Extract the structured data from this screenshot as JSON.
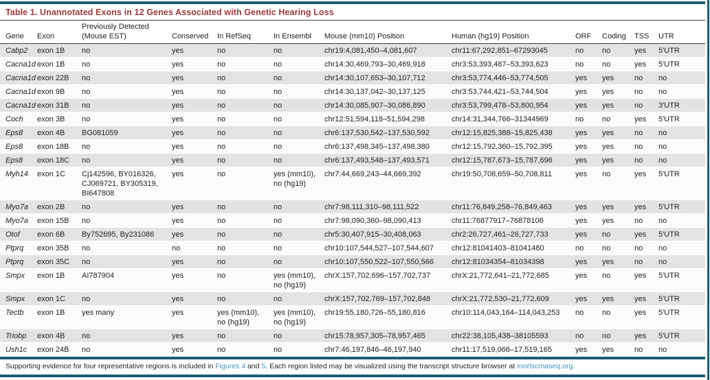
{
  "title": "Table 1.  Unannotated Exons in 12 Genes Associated with Genetic Hearing Loss",
  "colors": {
    "rule_blue": "#1f5c78",
    "title_red": "#9c3a3a",
    "link_blue": "#3f93c4",
    "stripe_gray": "#e3e3e3"
  },
  "table": {
    "columns": [
      {
        "key": "gene",
        "label": "Gene"
      },
      {
        "key": "exon",
        "label": "Exon"
      },
      {
        "key": "est",
        "label": "Previously Detected\n(Mouse EST)"
      },
      {
        "key": "conserved",
        "label": "Conserved"
      },
      {
        "key": "refseq",
        "label": "In RefSeq"
      },
      {
        "key": "ensembl",
        "label": "In Ensembl"
      },
      {
        "key": "mouse",
        "label": "Mouse (mm10) Position"
      },
      {
        "key": "human",
        "label": "Human (hg19) Position"
      },
      {
        "key": "orf",
        "label": "ORF"
      },
      {
        "key": "coding",
        "label": "Coding"
      },
      {
        "key": "tss",
        "label": "TSS"
      },
      {
        "key": "utr",
        "label": "UTR"
      }
    ],
    "rows": [
      {
        "gene": "Cabp2",
        "exon": "exon 1B",
        "est": "no",
        "conserved": "yes",
        "refseq": "no",
        "ensembl": "no",
        "mouse": "chr19:4,081,450–4,081,607",
        "human": "chr11:67,292,851–67293045",
        "orf": "no",
        "coding": "no",
        "tss": "yes",
        "utr": "5′UTR"
      },
      {
        "gene": "Cacna1d",
        "exon": "exon 1B",
        "est": "no",
        "conserved": "yes",
        "refseq": "no",
        "ensembl": "no",
        "mouse": "chr14:30,469,793–30,469,918",
        "human": "chr3:53,393,487–53,393,623",
        "orf": "no",
        "coding": "no",
        "tss": "yes",
        "utr": "5′UTR"
      },
      {
        "gene": "Cacna1d",
        "exon": "exon 22B",
        "est": "no",
        "conserved": "yes",
        "refseq": "no",
        "ensembl": "no",
        "mouse": "chr14:30,107,653–30,107,712",
        "human": "chr3:53,774,446–53,774,505",
        "orf": "yes",
        "coding": "yes",
        "tss": "no",
        "utr": "no"
      },
      {
        "gene": "Cacna1d",
        "exon": "exon 9B",
        "est": "no",
        "conserved": "yes",
        "refseq": "no",
        "ensembl": "no",
        "mouse": "chr14:30,137,042–30,137,125",
        "human": "chr3:53,744,421–53,744,504",
        "orf": "yes",
        "coding": "yes",
        "tss": "no",
        "utr": "no"
      },
      {
        "gene": "Cacna1d",
        "exon": "exon 31B",
        "est": "no",
        "conserved": "yes",
        "refseq": "no",
        "ensembl": "no",
        "mouse": "chr14:30,085,907–30,086,890",
        "human": "chr3:53,799,478–53,800,954",
        "orf": "yes",
        "coding": "yes",
        "tss": "no",
        "utr": "3′UTR"
      },
      {
        "gene": "Coch",
        "exon": "exon 3B",
        "est": "no",
        "conserved": "yes",
        "refseq": "no",
        "ensembl": "no",
        "mouse": "chr12:51,594,118–51,594,298",
        "human": "chr14:31,344,766–31344969",
        "orf": "no",
        "coding": "no",
        "tss": "yes",
        "utr": "5′UTR"
      },
      {
        "gene": "Eps8",
        "exon": "exon 4B",
        "est": "BG081059",
        "conserved": "yes",
        "refseq": "no",
        "ensembl": "no",
        "mouse": "chr6:137,530,542–137,530,592",
        "human": "chr12:15,825,388–15,825,438",
        "orf": "yes",
        "coding": "yes",
        "tss": "no",
        "utr": "no"
      },
      {
        "gene": "Eps8",
        "exon": "exon 18B",
        "est": "no",
        "conserved": "yes",
        "refseq": "no",
        "ensembl": "no",
        "mouse": "chr6:137,498,345–137,498,380",
        "human": "chr12:15,792,360–15,792,395",
        "orf": "yes",
        "coding": "yes",
        "tss": "no",
        "utr": "no"
      },
      {
        "gene": "Eps8",
        "exon": "exon 18C",
        "est": "no",
        "conserved": "yes",
        "refseq": "no",
        "ensembl": "no",
        "mouse": "chr6:137,493,548–137,493,571",
        "human": "chr12:15,787,673–15,787,696",
        "orf": "yes",
        "coding": "yes",
        "tss": "no",
        "utr": "no"
      },
      {
        "gene": "Myh14",
        "exon": "exon 1C",
        "est": "Cj142596, BY016326,\nCJ069721, BY305319,\nBI647808",
        "conserved": "yes",
        "refseq": "no",
        "ensembl": "yes (mm10),\nno (hg19)",
        "mouse": "chr7:44,669,243–44,669,392",
        "human": "chr19:50,708,659–50,708,811",
        "orf": "yes",
        "coding": "no",
        "tss": "yes",
        "utr": "5′UTR"
      },
      {
        "gene": "Myo7a",
        "exon": "exon 2B",
        "est": "no",
        "conserved": "yes",
        "refseq": "no",
        "ensembl": "no",
        "mouse": "chr7:98,111,310–98,111,522",
        "human": "chr11:76,849,258–76,849,463",
        "orf": "yes",
        "coding": "yes",
        "tss": "yes",
        "utr": "5′UTR"
      },
      {
        "gene": "Myo7a",
        "exon": "exon 15B",
        "est": "no",
        "conserved": "yes",
        "refseq": "no",
        "ensembl": "no",
        "mouse": "chr7:98,090,360–98,090,413",
        "human": "chr11:76877917–76878106",
        "orf": "yes",
        "coding": "yes",
        "tss": "no",
        "utr": "no"
      },
      {
        "gene": "Otof",
        "exon": "exon 6B",
        "est": "By752695, By231086",
        "conserved": "yes",
        "refseq": "no",
        "ensembl": "no",
        "mouse": "chr5:30,407,915–30,408,063",
        "human": "chr2:26,727,461–26,727,733",
        "orf": "yes",
        "coding": "no",
        "tss": "yes",
        "utr": "5′UTR"
      },
      {
        "gene": "Ptprq",
        "exon": "exon 35B",
        "est": "no",
        "conserved": "no",
        "refseq": "no",
        "ensembl": "no",
        "mouse": "chr10:107,544,527–107,544,607",
        "human": "chr12:81041403–81041480",
        "orf": "no",
        "coding": "no",
        "tss": "no",
        "utr": "no"
      },
      {
        "gene": "Ptprq",
        "exon": "exon 35C",
        "est": "no",
        "conserved": "yes",
        "refseq": "no",
        "ensembl": "no",
        "mouse": "chr10:107,550,522–107,550,566",
        "human": "chr12:81034354–81034398",
        "orf": "yes",
        "coding": "yes",
        "tss": "no",
        "utr": "no"
      },
      {
        "gene": "Smpx",
        "exon": "exon 1B",
        "est": "AI787904",
        "conserved": "yes",
        "refseq": "no",
        "ensembl": "yes (mm10),\nno (hg19)",
        "mouse": "chrX:157,702,696–157,702,737",
        "human": "chrX:21,772,641–21,772,685",
        "orf": "yes",
        "coding": "no",
        "tss": "yes",
        "utr": "5′UTR"
      },
      {
        "gene": "Smpx",
        "exon": "exon 1C",
        "est": "no",
        "conserved": "yes",
        "refseq": "no",
        "ensembl": "no",
        "mouse": "chrX:157,702,769–157,702,848",
        "human": "chrX:21,772,530–21,772,609",
        "orf": "yes",
        "coding": "yes",
        "tss": "yes",
        "utr": "5′UTR"
      },
      {
        "gene": "Tectb",
        "exon": "exon 1B",
        "est": "yes many",
        "conserved": "yes",
        "refseq": "yes (mm10),\nno (hg19)",
        "ensembl": "yes (mm10),\nno (hg19)",
        "mouse": "chr19:55,180,726–55,180,816",
        "human": "chr10:114,043,164–114,043,253",
        "orf": "no",
        "coding": "no",
        "tss": "yes",
        "utr": "5′UTR"
      },
      {
        "gene": "Triobp",
        "exon": "exon 4B",
        "est": "no",
        "conserved": "yes",
        "refseq": "no",
        "ensembl": "no",
        "mouse": "chr15:78,957,305–78,957,465",
        "human": "chr22:38,105,438–38105593",
        "orf": "no",
        "coding": "no",
        "tss": "yes",
        "utr": "5′UTR"
      },
      {
        "gene": "Ush1c",
        "exon": "exon 24B",
        "est": "no",
        "conserved": "yes",
        "refseq": "no",
        "ensembl": "no",
        "mouse": "chr7:46,197,846–46,197,940",
        "human": "chr11:17,519,066–17,519,165",
        "orf": "yes",
        "coding": "yes",
        "tss": "no",
        "utr": "no"
      }
    ]
  },
  "footnote": {
    "pre": "Supporting evidence for four representative regions is included in ",
    "figures4_link": "Figures 4",
    "and_text": " and ",
    "figure5_link": "5",
    "mid": ". Each region listed may be visualized using the transcript structure browser at ",
    "site_link": "morlscrnaseq.org",
    "post": "."
  }
}
